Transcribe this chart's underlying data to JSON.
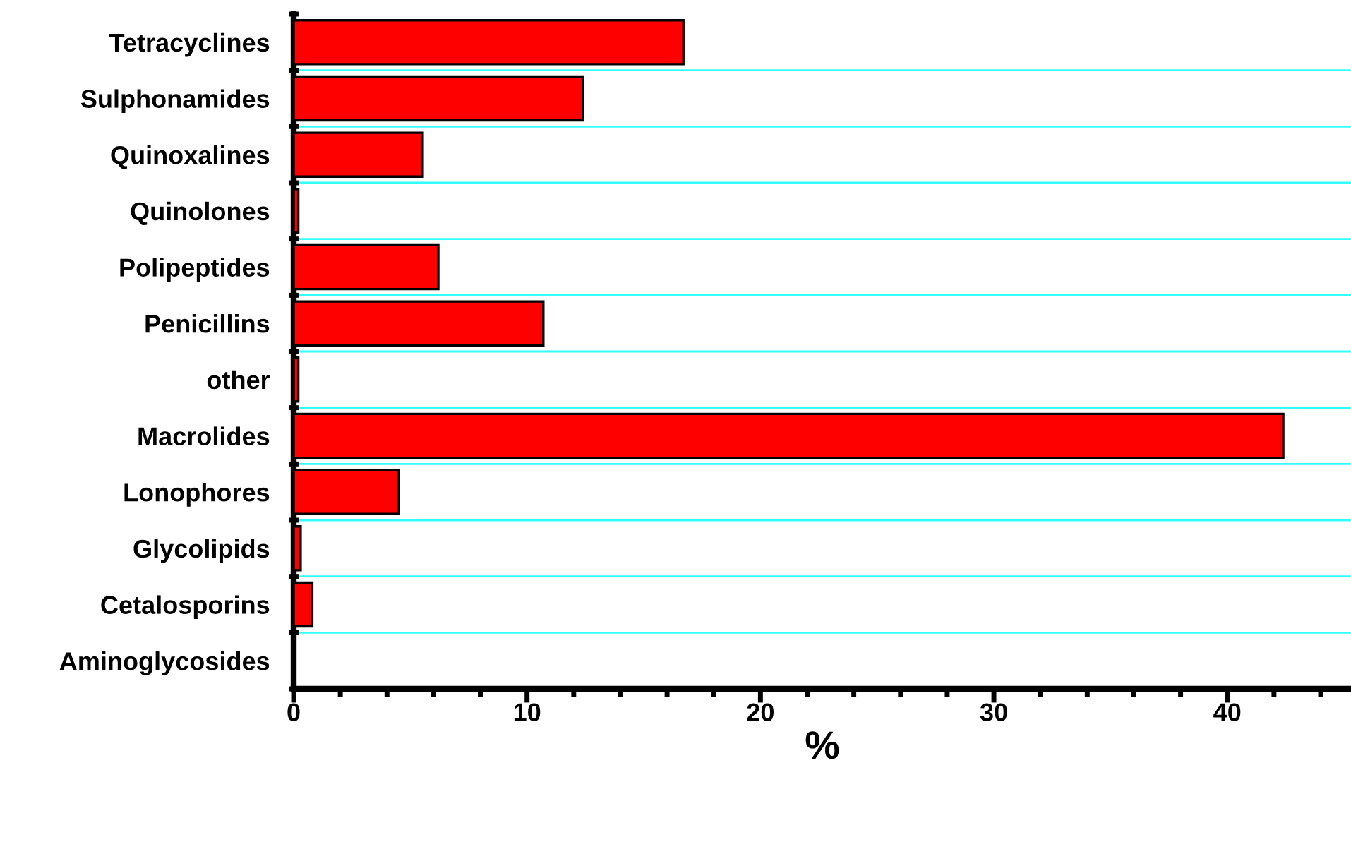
{
  "chart_data": {
    "type": "bar",
    "orientation": "horizontal",
    "xlabel": "%",
    "categories": [
      "Tetracyclines",
      "Sulphonamides",
      "Quinoxalines",
      "Quinolones",
      "Polipeptides",
      "Penicillins",
      "other",
      "Macrolides",
      "Lonophores",
      "Glycolipids",
      "Cetalosporins",
      "Aminoglycosides"
    ],
    "values": [
      16.7,
      12.4,
      5.5,
      0.2,
      6.2,
      10.7,
      0.2,
      42.4,
      4.5,
      0.3,
      0.8,
      0
    ],
    "color": "#ff0000",
    "xlim": [
      0,
      45.3
    ],
    "xticks": [
      0,
      {
        "value": 2,
        "label": null
      },
      {
        "value": 4,
        "label": null
      },
      {
        "value": 6,
        "label": null
      },
      {
        "value": 8,
        "label": null
      },
      10,
      {
        "value": 12,
        "label": null
      },
      {
        "value": 14,
        "label": null
      },
      {
        "value": 16,
        "label": null
      },
      {
        "value": 18,
        "label": null
      },
      20,
      {
        "value": 22,
        "label": null
      },
      {
        "value": 24,
        "label": null
      },
      {
        "value": 26,
        "label": null
      },
      {
        "value": 28,
        "label": null
      },
      30,
      {
        "value": 32,
        "label": null
      },
      {
        "value": 34,
        "label": null
      },
      {
        "value": 36,
        "label": null
      },
      {
        "value": 38,
        "label": null
      },
      40,
      {
        "value": 42,
        "label": null
      },
      {
        "value": 44,
        "label": null
      }
    ],
    "grid": "y"
  }
}
